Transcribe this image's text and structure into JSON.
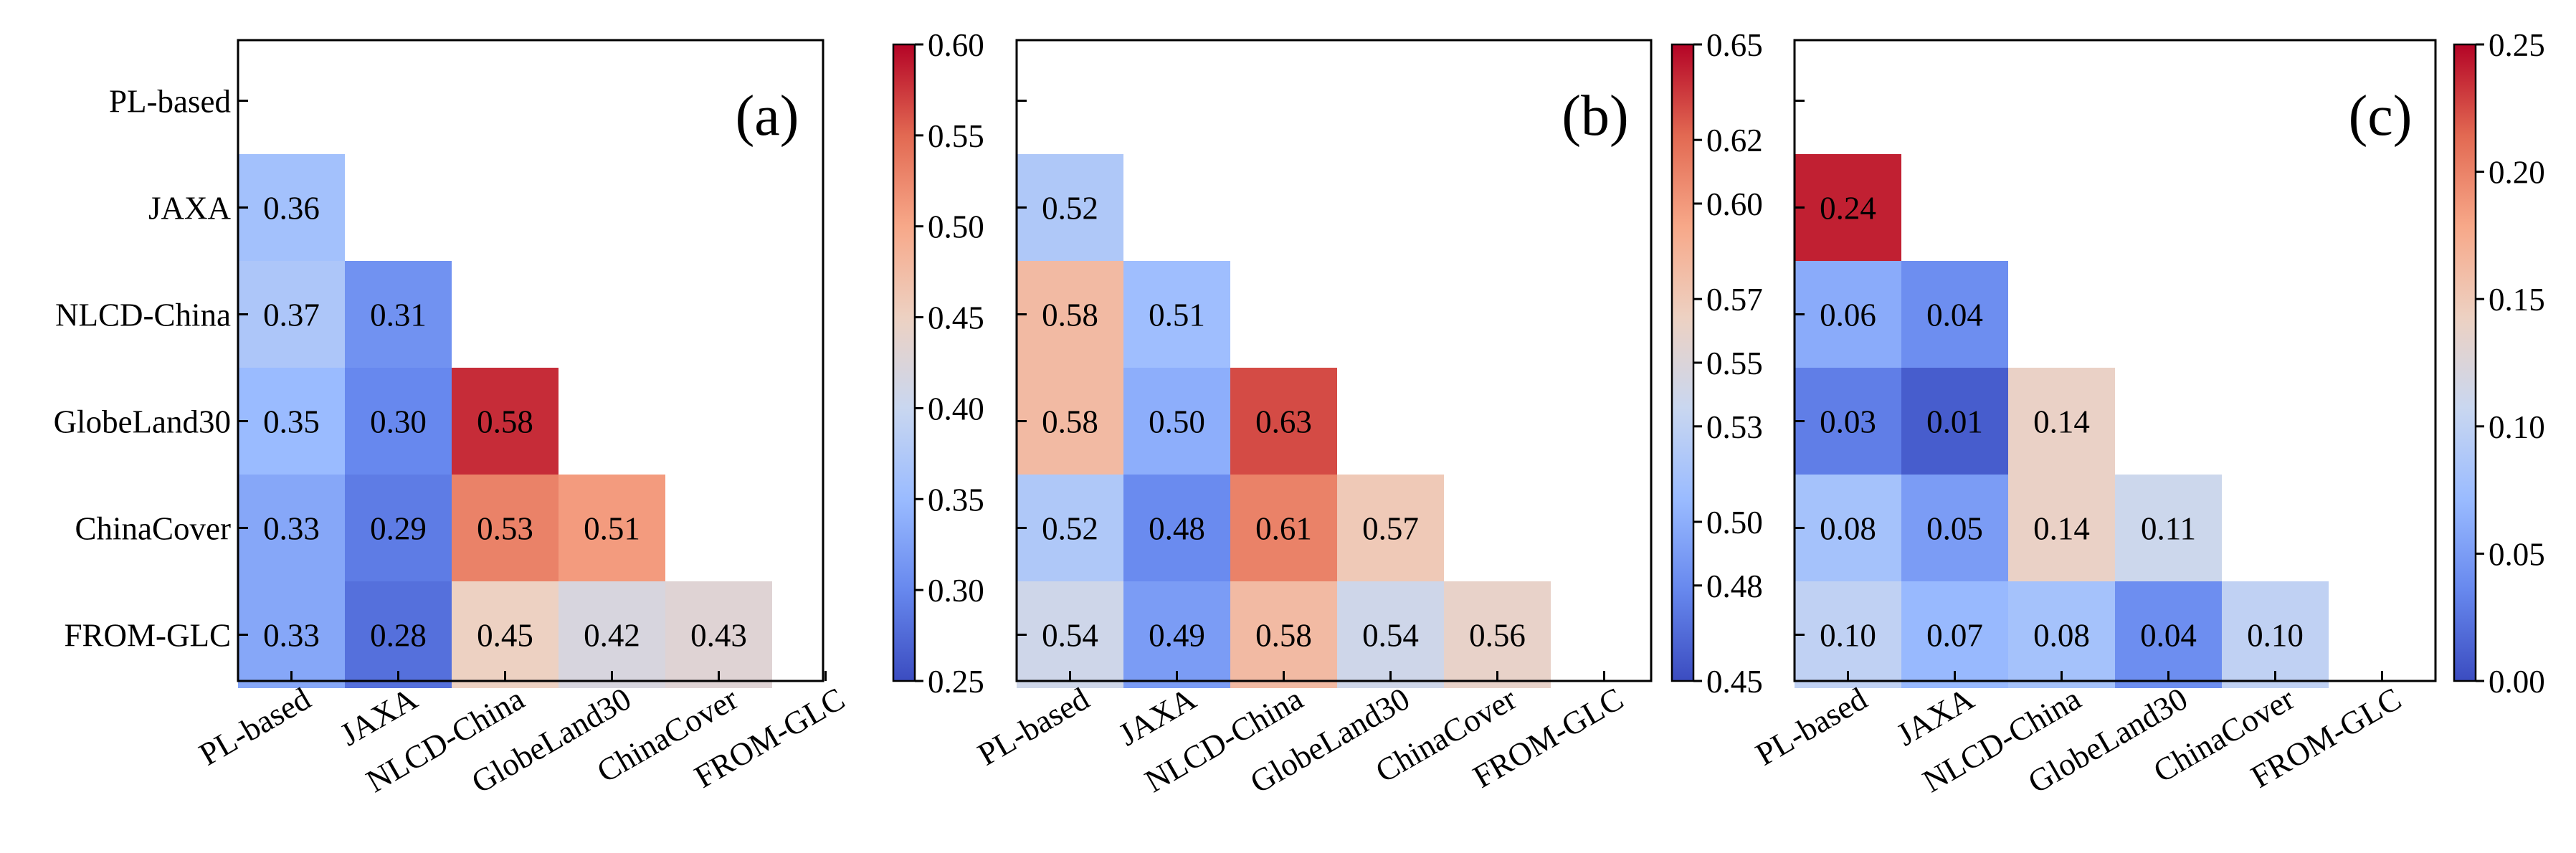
{
  "chart_data": [
    {
      "type": "heatmap",
      "panel_label": "(a)",
      "categories": [
        "PL-based",
        "JAXA",
        "NLCD-China",
        "GlobeLand30",
        "ChinaCover",
        "FROM-GLC"
      ],
      "values": [
        [
          null,
          null,
          null,
          null,
          null,
          null
        ],
        [
          0.36,
          null,
          null,
          null,
          null,
          null
        ],
        [
          0.37,
          0.31,
          null,
          null,
          null,
          null
        ],
        [
          0.35,
          0.3,
          0.58,
          null,
          null,
          null
        ],
        [
          0.33,
          0.29,
          0.53,
          0.51,
          null,
          null
        ],
        [
          0.33,
          0.28,
          0.45,
          0.42,
          0.43,
          null
        ]
      ],
      "colorbar": {
        "min": 0.25,
        "max": 0.6,
        "ticks": [
          "0.25",
          "0.30",
          "0.35",
          "0.40",
          "0.45",
          "0.50",
          "0.55",
          "0.60"
        ]
      }
    },
    {
      "type": "heatmap",
      "panel_label": "(b)",
      "categories": [
        "PL-based",
        "JAXA",
        "NLCD-China",
        "GlobeLand30",
        "ChinaCover",
        "FROM-GLC"
      ],
      "values": [
        [
          null,
          null,
          null,
          null,
          null,
          null
        ],
        [
          0.52,
          null,
          null,
          null,
          null,
          null
        ],
        [
          0.58,
          0.51,
          null,
          null,
          null,
          null
        ],
        [
          0.58,
          0.5,
          0.63,
          null,
          null,
          null
        ],
        [
          0.52,
          0.48,
          0.61,
          0.57,
          null,
          null
        ],
        [
          0.54,
          0.49,
          0.58,
          0.54,
          0.56,
          null
        ]
      ],
      "colorbar": {
        "min": 0.45,
        "max": 0.65,
        "ticks": [
          "0.45",
          "0.48",
          "0.50",
          "0.53",
          "0.55",
          "0.57",
          "0.60",
          "0.62",
          "0.65"
        ]
      }
    },
    {
      "type": "heatmap",
      "panel_label": "(c)",
      "categories": [
        "PL-based",
        "JAXA",
        "NLCD-China",
        "GlobeLand30",
        "ChinaCover",
        "FROM-GLC"
      ],
      "values": [
        [
          null,
          null,
          null,
          null,
          null,
          null
        ],
        [
          0.24,
          null,
          null,
          null,
          null,
          null
        ],
        [
          0.06,
          0.04,
          null,
          null,
          null,
          null
        ],
        [
          0.03,
          0.01,
          0.14,
          null,
          null,
          null
        ],
        [
          0.08,
          0.05,
          0.14,
          0.11,
          null,
          null
        ],
        [
          0.1,
          0.07,
          0.08,
          0.04,
          0.1,
          null
        ]
      ],
      "colorbar": {
        "min": 0.0,
        "max": 0.25,
        "ticks": [
          "0.00",
          "0.05",
          "0.10",
          "0.15",
          "0.20",
          "0.25"
        ]
      }
    }
  ],
  "colormap": {
    "name": "coolwarm",
    "stops": [
      "#3b4cc0",
      "#6788ee",
      "#9abbff",
      "#c9d7f0",
      "#edd1c2",
      "#f7a889",
      "#e26952",
      "#b40426"
    ]
  }
}
